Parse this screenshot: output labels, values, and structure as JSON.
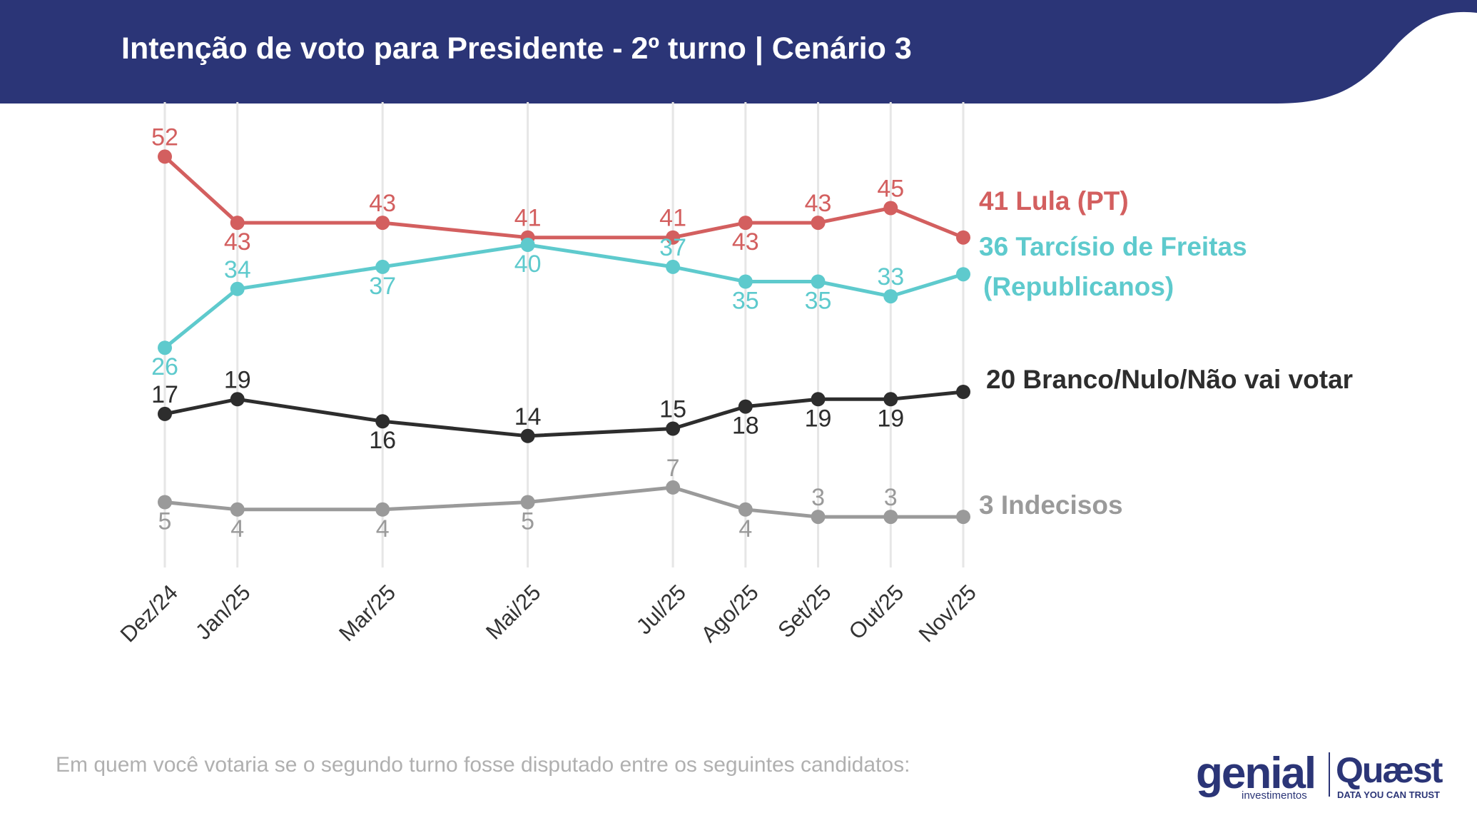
{
  "header": {
    "title": "Intenção de voto para Presidente - 2º turno | Cenário 3",
    "background_color": "#2b3577"
  },
  "footer": {
    "question": "Em quem você votaria se o segundo turno fosse disputado entre os seguintes candidatos:"
  },
  "logos": {
    "genial": "genial",
    "genial_sub": "investimentos",
    "quaest": "Quæst",
    "quaest_sub": "DATA YOU CAN TRUST"
  },
  "chart_data": {
    "type": "line",
    "categories": [
      "Dez/24",
      "Jan/25",
      "Mar/25",
      "Mai/25",
      "Jul/25",
      "Ago/25",
      "Set/25",
      "Out/25",
      "Nov/25"
    ],
    "x_month_index": [
      0,
      1,
      3,
      5,
      7,
      8,
      9,
      10,
      11
    ],
    "ylim": [
      0,
      55
    ],
    "grid": "vertical",
    "series": [
      {
        "name": "Lula (PT)",
        "end_label": "41 Lula (PT)",
        "color": "#d35f5f",
        "values": [
          52,
          43,
          43,
          41,
          41,
          43,
          43,
          45,
          41
        ],
        "label_pos": [
          "above",
          "below",
          "above",
          "above",
          "above",
          "below",
          "above",
          "above",
          "none"
        ]
      },
      {
        "name": "Tarcísio de Freitas (Republicanos)",
        "end_label": "36 Tarcísio de Freitas",
        "end_label_line2": "(Republicanos)",
        "color": "#5ecacd",
        "values": [
          26,
          34,
          37,
          40,
          37,
          35,
          35,
          33,
          36
        ],
        "label_pos": [
          "below",
          "above",
          "below",
          "below",
          "above",
          "below",
          "below",
          "above",
          "none"
        ]
      },
      {
        "name": "Branco/Nulo/Não vai votar",
        "end_label": "20 Branco/Nulo/Não vai votar",
        "color": "#2d2d2d",
        "values": [
          17,
          19,
          16,
          14,
          15,
          18,
          19,
          19,
          20
        ],
        "label_pos": [
          "above",
          "above",
          "below",
          "above",
          "above",
          "below",
          "below",
          "below",
          "none"
        ]
      },
      {
        "name": "Indecisos",
        "end_label": "3 Indecisos",
        "color": "#9a9a9a",
        "values": [
          5,
          4,
          4,
          5,
          7,
          4,
          3,
          3,
          3
        ],
        "label_pos": [
          "below",
          "below",
          "below",
          "below",
          "above",
          "below",
          "above",
          "above",
          "none"
        ]
      }
    ]
  }
}
